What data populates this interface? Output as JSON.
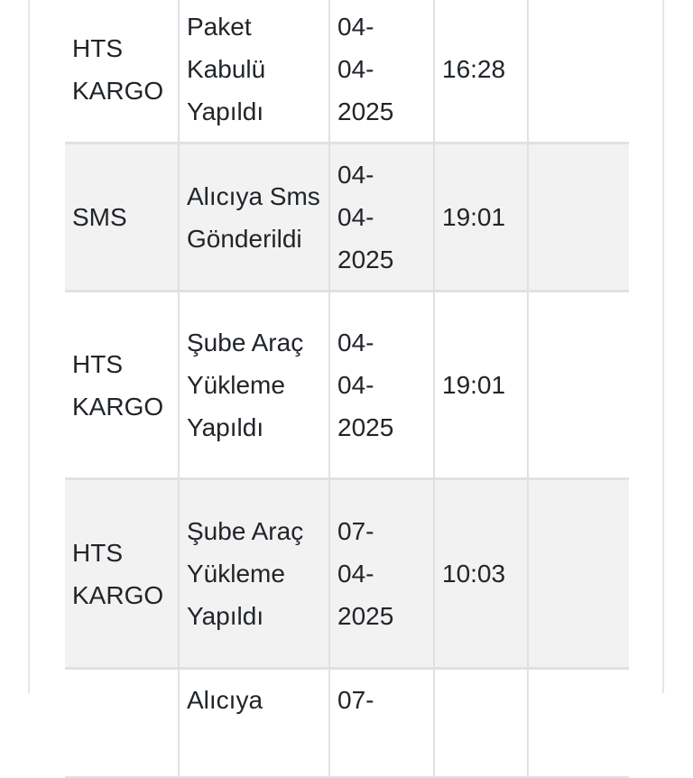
{
  "table": {
    "rows": [
      {
        "company": "HTS KARGO",
        "status": "Paket Kabulü Yapıldı",
        "date": "04-04-2025",
        "time": "16:28",
        "extra": ""
      },
      {
        "company": "SMS",
        "status": "Alıcıya Sms Gönderildi",
        "date": "04-04-2025",
        "time": "19:01",
        "extra": ""
      },
      {
        "company": "HTS KARGO",
        "status": "Şube Araç Yükleme Yapıldı",
        "date": "04-04-2025",
        "time": "19:01",
        "extra": ""
      },
      {
        "company": "HTS KARGO",
        "status": "Şube Araç Yükleme Yapıldı",
        "date": "07-04-2025",
        "time": "10:03",
        "extra": ""
      },
      {
        "company": "",
        "status": "Alıcıya",
        "date": "07-",
        "time": "",
        "extra": ""
      }
    ]
  }
}
